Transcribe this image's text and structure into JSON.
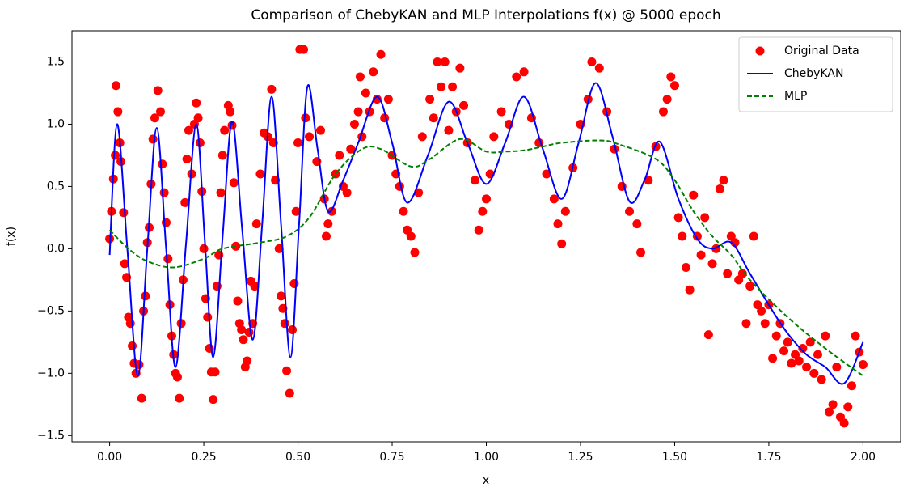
{
  "chart_data": {
    "type": "scatter_line",
    "title": "Comparison of ChebyKAN and MLP Interpolations f(x) @ 5000 epoch",
    "x_label": "x",
    "y_label": "f(x)",
    "xlim": [
      -0.1,
      2.1
    ],
    "ylim": [
      -1.55,
      1.75
    ],
    "xticks": [
      {
        "value": 0,
        "label": "0.00"
      },
      {
        "value": 0.25,
        "label": "0.25"
      },
      {
        "value": 0.5,
        "label": "0.50"
      },
      {
        "value": 0.75,
        "label": "0.75"
      },
      {
        "value": 1.0,
        "label": "1.00"
      },
      {
        "value": 1.25,
        "label": "1.25"
      },
      {
        "value": 1.5,
        "label": "1.50"
      },
      {
        "value": 1.75,
        "label": "1.75"
      },
      {
        "value": 2.0,
        "label": "2.00"
      }
    ],
    "yticks": [
      {
        "value": -1.5,
        "label": "−1.5"
      },
      {
        "value": -1.0,
        "label": "−1.0"
      },
      {
        "value": -0.5,
        "label": "−0.5"
      },
      {
        "value": 0,
        "label": "0.0"
      },
      {
        "value": 0.5,
        "label": "0.5"
      },
      {
        "value": 1.0,
        "label": "1.0"
      },
      {
        "value": 1.5,
        "label": "1.5"
      }
    ],
    "grid": false,
    "legend": "upper right",
    "series": [
      {
        "name": "Original Data",
        "type": "scatter",
        "color": "#ff0000",
        "x": [
          0,
          0.005,
          0.01,
          0.015,
          0.017,
          0.022,
          0.027,
          0.03,
          0.037,
          0.04,
          0.045,
          0.05,
          0.055,
          0.06,
          0.065,
          0.07,
          0.078,
          0.085,
          0.09,
          0.095,
          0.1,
          0.105,
          0.11,
          0.115,
          0.12,
          0.128,
          0.135,
          0.14,
          0.145,
          0.15,
          0.155,
          0.16,
          0.165,
          0.17,
          0.175,
          0.18,
          0.185,
          0.19,
          0.195,
          0.2,
          0.205,
          0.21,
          0.218,
          0.225,
          0.23,
          0.235,
          0.24,
          0.245,
          0.25,
          0.255,
          0.26,
          0.265,
          0.27,
          0.275,
          0.28,
          0.285,
          0.29,
          0.295,
          0.3,
          0.305,
          0.315,
          0.32,
          0.325,
          0.33,
          0.335,
          0.34,
          0.345,
          0.35,
          0.355,
          0.36,
          0.365,
          0.37,
          0.375,
          0.38,
          0.385,
          0.39,
          0.4,
          0.41,
          0.42,
          0.43,
          0.435,
          0.44,
          0.45,
          0.455,
          0.46,
          0.465,
          0.47,
          0.478,
          0.485,
          0.49,
          0.495,
          0.5,
          0.505,
          0.515,
          0.52,
          0.53,
          0.55,
          0.56,
          0.57,
          0.575,
          0.58,
          0.59,
          0.6,
          0.61,
          0.62,
          0.63,
          0.64,
          0.65,
          0.66,
          0.665,
          0.67,
          0.68,
          0.69,
          0.7,
          0.71,
          0.72,
          0.73,
          0.74,
          0.75,
          0.76,
          0.77,
          0.78,
          0.79,
          0.8,
          0.81,
          0.82,
          0.83,
          0.85,
          0.86,
          0.87,
          0.88,
          0.89,
          0.9,
          0.91,
          0.92,
          0.93,
          0.94,
          0.95,
          0.97,
          0.98,
          0.99,
          1.0,
          1.01,
          1.02,
          1.04,
          1.06,
          1.08,
          1.1,
          1.12,
          1.14,
          1.16,
          1.18,
          1.19,
          1.2,
          1.21,
          1.23,
          1.25,
          1.27,
          1.28,
          1.3,
          1.32,
          1.34,
          1.36,
          1.38,
          1.4,
          1.41,
          1.43,
          1.45,
          1.47,
          1.48,
          1.49,
          1.5,
          1.51,
          1.52,
          1.53,
          1.54,
          1.55,
          1.56,
          1.57,
          1.58,
          1.59,
          1.6,
          1.61,
          1.62,
          1.63,
          1.64,
          1.65,
          1.66,
          1.67,
          1.68,
          1.69,
          1.7,
          1.71,
          1.72,
          1.73,
          1.74,
          1.75,
          1.76,
          1.77,
          1.78,
          1.79,
          1.8,
          1.81,
          1.82,
          1.83,
          1.84,
          1.85,
          1.86,
          1.87,
          1.88,
          1.89,
          1.9,
          1.91,
          1.92,
          1.93,
          1.94,
          1.95,
          1.96,
          1.97,
          1.98,
          1.99,
          2.0
        ],
        "values": [
          0.08,
          0.3,
          0.56,
          0.75,
          1.31,
          1.1,
          0.85,
          0.7,
          0.29,
          -0.12,
          -0.23,
          -0.55,
          -0.6,
          -0.78,
          -0.92,
          -1.0,
          -0.93,
          -1.2,
          -0.5,
          -0.38,
          0.05,
          0.17,
          0.52,
          0.88,
          1.05,
          1.27,
          1.1,
          0.68,
          0.45,
          0.21,
          -0.08,
          -0.45,
          -0.7,
          -0.85,
          -1.0,
          -1.03,
          -1.2,
          -0.6,
          -0.25,
          0.37,
          0.72,
          0.95,
          0.6,
          1.0,
          1.17,
          1.05,
          0.85,
          0.46,
          0.0,
          -0.4,
          -0.55,
          -0.8,
          -0.99,
          -1.21,
          -0.99,
          -0.3,
          -0.05,
          0.45,
          0.75,
          0.95,
          1.15,
          1.1,
          0.99,
          0.53,
          0.02,
          -0.42,
          -0.6,
          -0.65,
          -0.73,
          -0.95,
          -0.9,
          -0.67,
          -0.26,
          -0.6,
          -0.3,
          0.2,
          0.6,
          0.93,
          0.9,
          1.28,
          0.85,
          0.55,
          0.0,
          -0.38,
          -0.48,
          -0.6,
          -0.98,
          -1.16,
          -0.65,
          -0.28,
          0.3,
          0.85,
          1.6,
          1.6,
          1.05,
          0.9,
          0.7,
          0.95,
          0.4,
          0.1,
          0.2,
          0.3,
          0.6,
          0.75,
          0.5,
          0.45,
          0.8,
          1.0,
          1.1,
          1.38,
          0.9,
          1.25,
          1.1,
          1.42,
          1.2,
          1.56,
          1.05,
          1.2,
          0.75,
          0.6,
          0.5,
          0.3,
          0.15,
          0.1,
          -0.03,
          0.45,
          0.9,
          1.2,
          1.05,
          1.5,
          1.3,
          1.5,
          0.95,
          1.3,
          1.1,
          1.45,
          1.15,
          0.85,
          0.55,
          0.15,
          0.3,
          0.4,
          0.6,
          0.9,
          1.1,
          1.0,
          1.38,
          1.42,
          1.05,
          0.85,
          0.6,
          0.4,
          0.2,
          0.04,
          0.3,
          0.65,
          1.0,
          1.2,
          1.5,
          1.45,
          1.1,
          0.8,
          0.5,
          0.3,
          0.2,
          -0.03,
          0.55,
          0.82,
          1.1,
          1.2,
          1.38,
          1.31,
          0.25,
          0.1,
          -0.15,
          -0.33,
          0.43,
          0.1,
          -0.05,
          0.25,
          -0.69,
          -0.12,
          0.0,
          0.48,
          0.55,
          -0.2,
          0.1,
          0.05,
          -0.25,
          -0.2,
          -0.6,
          -0.3,
          0.1,
          -0.45,
          -0.5,
          -0.6,
          -0.45,
          -0.88,
          -0.7,
          -0.6,
          -0.82,
          -0.75,
          -0.92,
          -0.85,
          -0.9,
          -0.8,
          -0.95,
          -0.75,
          -1.0,
          -0.85,
          -1.05,
          -0.7,
          -1.31,
          -1.25,
          -0.95,
          -1.35,
          -1.4,
          -1.27,
          -1.1,
          -0.7,
          -0.83,
          -0.93
        ]
      },
      {
        "name": "ChebyKAN",
        "type": "line",
        "color": "#0000ff",
        "style": "solid",
        "x": [
          0,
          0.02,
          0.047,
          0.075,
          0.1,
          0.125,
          0.15,
          0.175,
          0.203,
          0.23,
          0.253,
          0.275,
          0.3,
          0.325,
          0.352,
          0.38,
          0.405,
          0.43,
          0.455,
          0.48,
          0.503,
          0.525,
          0.552,
          0.58,
          0.62,
          0.66,
          0.71,
          0.75,
          0.79,
          0.845,
          0.9,
          0.95,
          1.0,
          1.05,
          1.1,
          1.15,
          1.2,
          1.245,
          1.29,
          1.335,
          1.38,
          1.42,
          1.46,
          1.51,
          1.56,
          1.6,
          1.65,
          1.7,
          1.76,
          1.8,
          1.85,
          1.9,
          1.95,
          2.0
        ],
        "values": [
          -0.05,
          1.0,
          0.0,
          -1.02,
          0.0,
          0.97,
          0.0,
          -0.95,
          0.05,
          1.0,
          0.05,
          -0.87,
          0.1,
          1.02,
          0.15,
          -0.73,
          0.2,
          1.22,
          0.2,
          -0.87,
          0.2,
          1.3,
          0.8,
          0.3,
          0.55,
          0.85,
          1.22,
          0.85,
          0.37,
          0.75,
          1.18,
          0.85,
          0.52,
          0.85,
          1.22,
          0.8,
          0.4,
          0.85,
          1.33,
          0.9,
          0.38,
          0.55,
          0.86,
          0.4,
          0.08,
          0.0,
          0.05,
          -0.2,
          -0.5,
          -0.68,
          -0.85,
          -0.95,
          -1.08,
          -0.75
        ]
      },
      {
        "name": "MLP",
        "type": "line",
        "color": "#008000",
        "style": "dashed",
        "x": [
          0,
          0.05,
          0.1,
          0.17,
          0.25,
          0.3,
          0.4,
          0.47,
          0.53,
          0.6,
          0.67,
          0.72,
          0.8,
          0.85,
          0.93,
          1.0,
          1.05,
          1.1,
          1.15,
          1.2,
          1.3,
          1.35,
          1.45,
          1.5,
          1.55,
          1.6,
          1.65,
          1.7,
          1.8,
          1.9,
          2.0
        ],
        "values": [
          0.15,
          0.0,
          -0.1,
          -0.15,
          -0.08,
          0.0,
          0.05,
          0.1,
          0.25,
          0.6,
          0.8,
          0.8,
          0.66,
          0.72,
          0.88,
          0.78,
          0.78,
          0.79,
          0.82,
          0.85,
          0.87,
          0.84,
          0.72,
          0.55,
          0.3,
          0.1,
          -0.05,
          -0.25,
          -0.55,
          -0.8,
          -1.02
        ]
      }
    ]
  }
}
